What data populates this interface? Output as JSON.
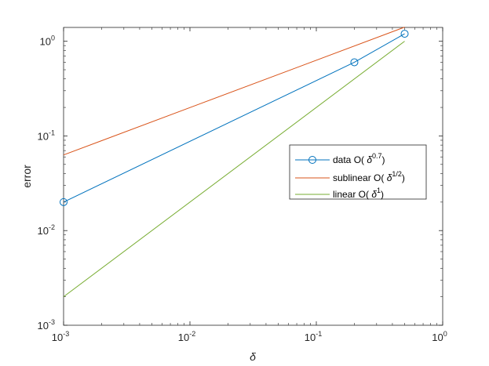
{
  "chart_data": {
    "type": "line",
    "title": "",
    "xlabel": "δ",
    "ylabel": "error",
    "xscale": "log",
    "yscale": "log",
    "xlim": [
      0.001,
      1
    ],
    "ylim": [
      0.001,
      1.4
    ],
    "grid": false,
    "legend_position": "center-right",
    "x_ticks": [
      {
        "base": "10",
        "exp": "-3",
        "value": 0.001
      },
      {
        "base": "10",
        "exp": "-2",
        "value": 0.01
      },
      {
        "base": "10",
        "exp": "-1",
        "value": 0.1
      },
      {
        "base": "10",
        "exp": "0",
        "value": 1
      }
    ],
    "y_ticks": [
      {
        "base": "10",
        "exp": "-3",
        "value": 0.001
      },
      {
        "base": "10",
        "exp": "-2",
        "value": 0.01
      },
      {
        "base": "10",
        "exp": "-1",
        "value": 0.1
      },
      {
        "base": "10",
        "exp": "0",
        "value": 1
      }
    ],
    "series": [
      {
        "legend": {
          "prefix": "data O( ",
          "base": "δ",
          "sup": "0.7",
          "suffix": ")"
        },
        "color": "#0072bd",
        "marker": "circle",
        "x": [
          0.001,
          0.2,
          0.5
        ],
        "y": [
          0.02,
          0.6,
          1.2
        ]
      },
      {
        "legend": {
          "prefix": "sublinear O(  ",
          "base": "δ",
          "sup": "1/2",
          "suffix": ")"
        },
        "color": "#d95319",
        "marker": "none",
        "x": [
          0.001,
          0.5
        ],
        "y": [
          0.063,
          1.41
        ]
      },
      {
        "legend": {
          "prefix": "linear O(  ",
          "base": "δ",
          "sup": "1",
          "suffix": ")"
        },
        "color": "#77ac30",
        "marker": "none",
        "x": [
          0.001,
          0.5
        ],
        "y": [
          0.002,
          1.0
        ]
      }
    ]
  }
}
